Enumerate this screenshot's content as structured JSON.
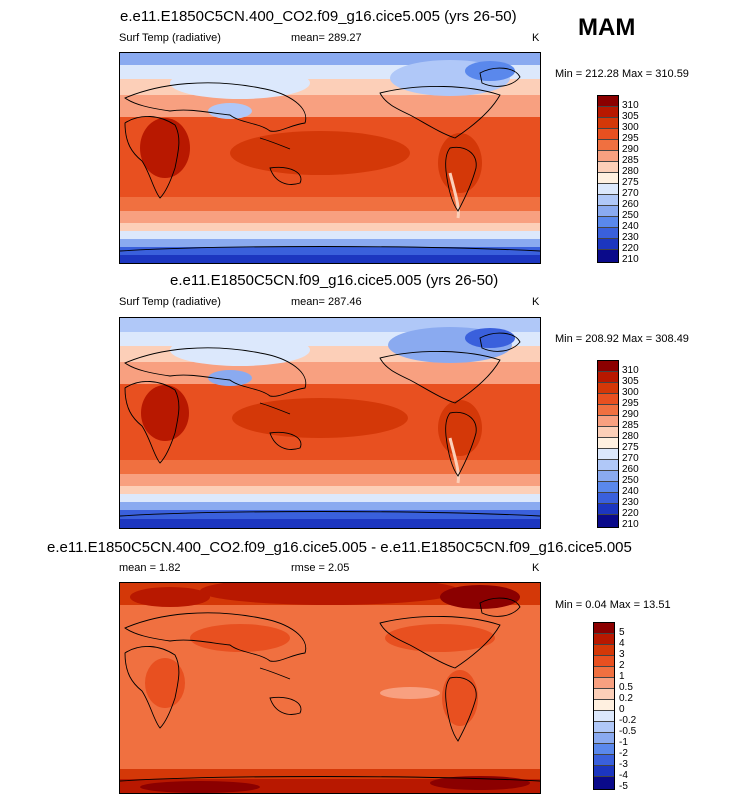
{
  "figure": {
    "season": "MAM",
    "units": "K"
  },
  "panels": [
    {
      "title": "e.e11.E1850C5CN.400_CO2.f09_g16.cice5.005 (yrs 26-50)",
      "variable": "Surf Temp (radiative)",
      "mean_text": "mean= 289.27",
      "units": "K",
      "minmax_text": "Min = 212.28 Max = 310.59"
    },
    {
      "title": "e.e11.E1850C5CN.f09_g16.cice5.005 (yrs 26-50)",
      "variable": "Surf Temp (radiative)",
      "mean_text": "mean= 287.46",
      "units": "K",
      "minmax_text": "Min = 208.92 Max = 308.49"
    },
    {
      "title": "e.e11.E1850C5CN.400_CO2.f09_g16.cice5.005 - e.e11.E1850C5CN.f09_g16.cice5.005",
      "mean_text": "mean =   1.82",
      "rmse_text": "rmse =   2.05",
      "units": "K",
      "minmax_text": "Min =   0.04 Max =  13.51"
    }
  ],
  "chart_data": [
    {
      "type": "heatmap",
      "title": "e.e11.E1850C5CN.400_CO2.f09_g16.cice5.005 (yrs 26-50)",
      "field": "Surf Temp (radiative)",
      "units": "K",
      "mean": 289.27,
      "min": 212.28,
      "max": 310.59,
      "colorbar_levels": [
        "310",
        "305",
        "300",
        "295",
        "290",
        "285",
        "280",
        "275",
        "270",
        "260",
        "250",
        "240",
        "230",
        "220",
        "210"
      ]
    },
    {
      "type": "heatmap",
      "title": "e.e11.E1850C5CN.f09_g16.cice5.005 (yrs 26-50)",
      "field": "Surf Temp (radiative)",
      "units": "K",
      "mean": 287.46,
      "min": 208.92,
      "max": 308.49,
      "colorbar_levels": [
        "310",
        "305",
        "300",
        "295",
        "290",
        "285",
        "280",
        "275",
        "270",
        "260",
        "250",
        "240",
        "230",
        "220",
        "210"
      ]
    },
    {
      "type": "heatmap",
      "title": "e.e11.E1850C5CN.400_CO2.f09_g16.cice5.005 - e.e11.E1850C5CN.f09_g16.cice5.005",
      "units": "K",
      "mean": 1.82,
      "rmse": 2.05,
      "min": 0.04,
      "max": 13.51,
      "colorbar_levels": [
        "5",
        "4",
        "3",
        "2",
        "1",
        "0.5",
        "0.2",
        "0",
        "-0.2",
        "-0.5",
        "-1",
        "-2",
        "-3",
        "-4",
        "-5"
      ]
    }
  ],
  "colors": {
    "abs_scale": [
      "#8b0000",
      "#b81800",
      "#d43808",
      "#e85020",
      "#f07040",
      "#f8a080",
      "#fccfb8",
      "#fff0e0",
      "#dce8fc",
      "#b0c8f8",
      "#8aaaf0",
      "#5a88ec",
      "#3a60dc",
      "#1c36c0",
      "#0a0a8a"
    ],
    "diff_scale": [
      "#8b0000",
      "#b81800",
      "#d43808",
      "#e85020",
      "#f07040",
      "#f8a080",
      "#fccfb8",
      "#fff0e0",
      "#dce8fc",
      "#b0c8f8",
      "#8aaaf0",
      "#5a88ec",
      "#3a60dc",
      "#1c36c0",
      "#0a0a8a"
    ]
  }
}
